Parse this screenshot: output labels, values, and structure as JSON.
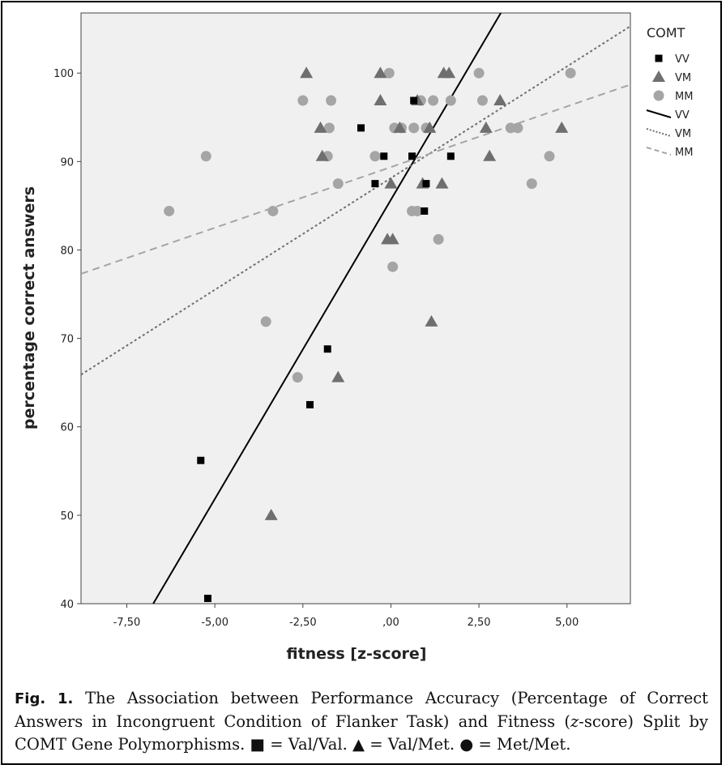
{
  "chart_data": {
    "type": "scatter",
    "xlabel": "fitness [z-score]",
    "ylabel": "percentage correct answers",
    "xlim": [
      -8.8,
      6.8
    ],
    "ylim": [
      40,
      106.8
    ],
    "x_ticks": [
      -7.5,
      -5,
      -2.5,
      0,
      2.5,
      5
    ],
    "x_tick_labels": [
      "-7,50",
      "-5,00",
      "-2,50",
      ",00",
      "2,50",
      "5,00"
    ],
    "y_ticks": [
      40,
      50,
      60,
      70,
      80,
      90,
      100
    ],
    "y_tick_labels": [
      "40",
      "50",
      "60",
      "70",
      "80",
      "90",
      "100"
    ],
    "legend_title": "COMT",
    "legend_position": "right",
    "colors": {
      "VV": "#000000",
      "VM": "#6f6f6f",
      "MM": "#a5a5a5",
      "plot_bg": "#f0f0f0"
    },
    "series": [
      {
        "name": "VV",
        "marker": "square",
        "points": [
          [
            -5.2,
            40.6
          ],
          [
            -5.4,
            56.2
          ],
          [
            -2.3,
            62.5
          ],
          [
            -1.8,
            68.8
          ],
          [
            -0.45,
            87.5
          ],
          [
            -0.85,
            93.8
          ],
          [
            -0.2,
            90.6
          ],
          [
            0.6,
            90.6
          ],
          [
            0.65,
            96.9
          ],
          [
            0.95,
            84.4
          ],
          [
            1.0,
            87.5
          ],
          [
            1.7,
            90.6
          ]
        ]
      },
      {
        "name": "VM",
        "marker": "triangle",
        "points": [
          [
            -3.4,
            50.0
          ],
          [
            -1.5,
            65.6
          ],
          [
            1.15,
            71.9
          ],
          [
            -0.1,
            81.2
          ],
          [
            0.05,
            81.2
          ],
          [
            0.0,
            87.5
          ],
          [
            0.9,
            87.5
          ],
          [
            1.45,
            87.5
          ],
          [
            -1.95,
            90.6
          ],
          [
            2.8,
            90.6
          ],
          [
            -2.0,
            93.8
          ],
          [
            0.25,
            93.8
          ],
          [
            1.1,
            93.8
          ],
          [
            2.7,
            93.8
          ],
          [
            4.85,
            93.8
          ],
          [
            -0.3,
            96.9
          ],
          [
            -2.4,
            100.0
          ],
          [
            -0.3,
            100.0
          ],
          [
            1.5,
            100.0
          ],
          [
            1.65,
            100.0
          ],
          [
            0.75,
            96.9
          ],
          [
            3.1,
            96.9
          ]
        ]
      },
      {
        "name": "MM",
        "marker": "circle",
        "points": [
          [
            -6.3,
            84.4
          ],
          [
            -5.25,
            90.6
          ],
          [
            -3.35,
            84.4
          ],
          [
            -3.55,
            71.9
          ],
          [
            -2.65,
            65.6
          ],
          [
            -2.5,
            96.9
          ],
          [
            -1.7,
            96.9
          ],
          [
            -1.8,
            90.6
          ],
          [
            -1.75,
            93.8
          ],
          [
            -1.5,
            87.5
          ],
          [
            -0.45,
            90.6
          ],
          [
            0.05,
            78.1
          ],
          [
            0.1,
            93.8
          ],
          [
            0.3,
            93.8
          ],
          [
            -0.05,
            100.0
          ],
          [
            0.6,
            84.4
          ],
          [
            0.75,
            84.4
          ],
          [
            0.65,
            93.8
          ],
          [
            0.85,
            96.9
          ],
          [
            1.2,
            96.9
          ],
          [
            1.0,
            93.8
          ],
          [
            1.35,
            81.2
          ],
          [
            1.7,
            96.9
          ],
          [
            2.5,
            100.0
          ],
          [
            2.6,
            96.9
          ],
          [
            3.4,
            93.8
          ],
          [
            3.6,
            93.8
          ],
          [
            4.0,
            87.5
          ],
          [
            4.5,
            90.6
          ],
          [
            5.1,
            100.0
          ]
        ]
      }
    ],
    "fit_lines": [
      {
        "name": "VV",
        "style": "solid",
        "points": [
          [
            -6.75,
            40.0
          ],
          [
            3.15,
            107.0
          ]
        ]
      },
      {
        "name": "VM",
        "style": "dotted",
        "points": [
          [
            -8.8,
            65.9
          ],
          [
            6.8,
            105.3
          ]
        ]
      },
      {
        "name": "MM",
        "style": "dashed",
        "points": [
          [
            -8.8,
            77.3
          ],
          [
            6.8,
            98.7
          ]
        ]
      }
    ]
  },
  "caption": {
    "fig_label": "Fig. 1.",
    "text_part1": "The Association between Performance Accuracy (Percentage of Correct Answers in Incongruent Condition of Flanker Task) and Fitness (",
    "text_italic": "z",
    "text_part2": "-score) Split by COMT Gene Polymorphisms.",
    "key1_symbol": "■",
    "key1_text": "= Val/Val.",
    "key2_symbol": "▲",
    "key2_text": "= Val/Met.",
    "key3_symbol": "●",
    "key3_text": "= Met/Met."
  }
}
